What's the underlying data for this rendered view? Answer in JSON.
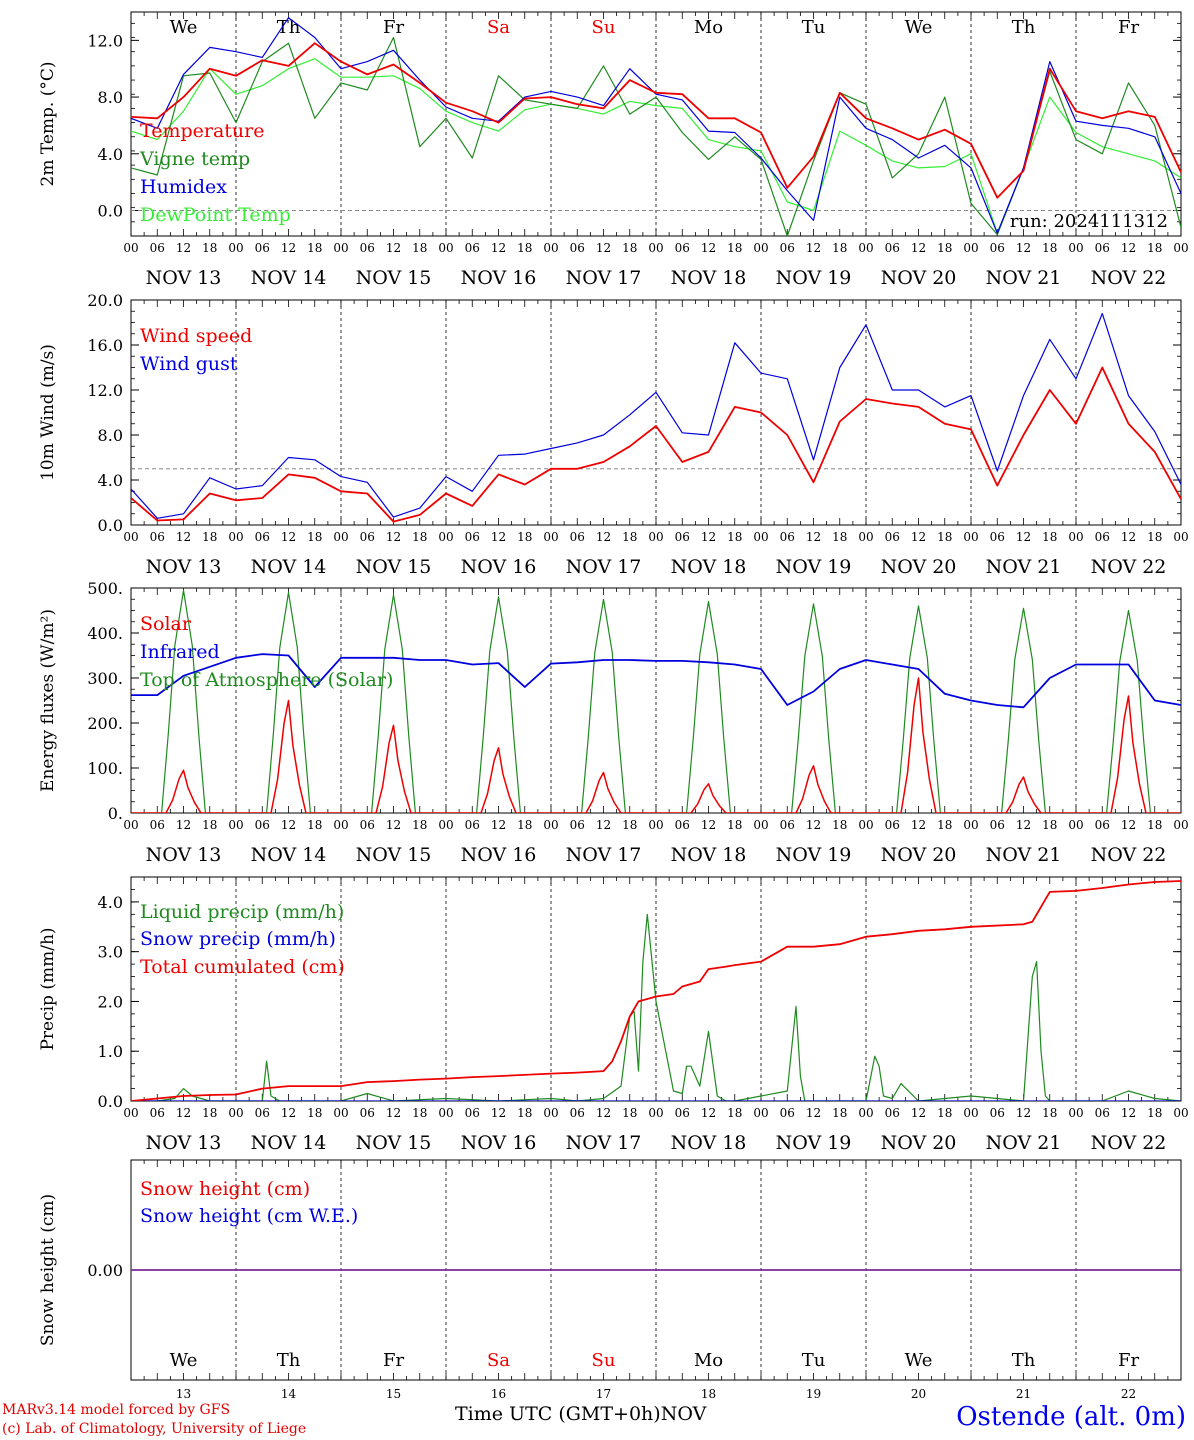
{
  "footer": {
    "credit_line1": "MARv3.14 model forced by GFS",
    "credit_line2": "(c) Lab. of Climatology, University of Liege",
    "x_axis_label": "Time UTC (GMT+0h)",
    "x_axis_month": "NOV",
    "station": "Ostende (alt. 0m)"
  },
  "colors": {
    "red": "#ee0000",
    "green": "#1f8a1f",
    "blue": "#0000dd",
    "lightgreen": "#33ee33",
    "purple": "#7a2a9a",
    "weekend": "#ee0000"
  },
  "days": {
    "weekday_labels": [
      "We",
      "Th",
      "Fr",
      "Sa",
      "Su",
      "Mo",
      "Tu",
      "We",
      "Th",
      "Fr"
    ],
    "weekend_index": [
      3,
      4
    ],
    "date_labels": [
      "NOV 13",
      "NOV 14",
      "NOV 15",
      "NOV 16",
      "NOV 17",
      "NOV 18",
      "NOV 19",
      "NOV 20",
      "NOV 21",
      "NOV 22"
    ],
    "day_numbers": [
      "13",
      "14",
      "15",
      "16",
      "17",
      "18",
      "19",
      "20",
      "21",
      "22"
    ],
    "hour_ticks": [
      "00",
      "06",
      "12",
      "18"
    ],
    "hour_tick_end": "00"
  },
  "chart_data": [
    {
      "type": "line",
      "ylabel": "2m Temp. (°C)",
      "ylim": [
        -1.8,
        14.0
      ],
      "yticks": [
        "0.0",
        "4.0",
        "8.0",
        "12.0"
      ],
      "ytick_values": [
        0,
        4,
        8,
        12
      ],
      "run_label": "run: 2024111312",
      "ref_line": 0,
      "x_unit": "hours since 2024-11-13 00 UTC",
      "series": [
        {
          "name": "Temperature",
          "color": "red",
          "x": [
            0,
            6,
            12,
            18,
            24,
            30,
            36,
            42,
            48,
            54,
            60,
            66,
            72,
            78,
            84,
            90,
            96,
            102,
            108,
            114,
            120,
            126,
            132,
            138,
            144,
            150,
            156,
            162,
            168,
            174,
            180,
            186,
            192,
            198,
            204,
            210,
            216,
            222,
            228,
            234,
            240
          ],
          "values": [
            6.6,
            6.5,
            8.0,
            10.0,
            9.5,
            10.6,
            10.2,
            11.8,
            10.5,
            9.6,
            10.3,
            9.0,
            7.6,
            7.0,
            6.2,
            7.9,
            8.0,
            7.5,
            7.2,
            9.2,
            8.3,
            8.2,
            6.5,
            6.5,
            5.5,
            1.6,
            3.8,
            8.3,
            6.5,
            5.8,
            5.0,
            5.7,
            4.7,
            0.9,
            2.8,
            10.0,
            7.0,
            6.5,
            7.0,
            6.6,
            2.7
          ]
        },
        {
          "name": "Vigne temp",
          "color": "green",
          "x": [
            0,
            6,
            12,
            18,
            24,
            30,
            36,
            42,
            48,
            54,
            60,
            66,
            72,
            78,
            84,
            90,
            96,
            102,
            108,
            114,
            120,
            126,
            132,
            138,
            144,
            150,
            156,
            162,
            168,
            174,
            180,
            186,
            192,
            198,
            204,
            210,
            216,
            222,
            228,
            234,
            240
          ],
          "values": [
            3.0,
            2.5,
            9.5,
            9.7,
            6.2,
            10.5,
            11.8,
            6.5,
            9.0,
            8.5,
            12.2,
            4.5,
            6.5,
            3.7,
            9.5,
            7.8,
            7.5,
            7.2,
            10.2,
            6.8,
            8.0,
            5.5,
            3.6,
            5.2,
            3.6,
            -1.8,
            3.5,
            8.3,
            7.5,
            2.3,
            4.0,
            8.0,
            0.5,
            -1.7,
            3.0,
            9.8,
            5.0,
            4.0,
            9.0,
            6.0,
            -1.2
          ]
        },
        {
          "name": "Humidex",
          "color": "blue",
          "x": [
            0,
            6,
            12,
            18,
            24,
            30,
            36,
            42,
            48,
            54,
            60,
            66,
            72,
            78,
            84,
            90,
            96,
            102,
            108,
            114,
            120,
            126,
            132,
            138,
            144,
            150,
            156,
            162,
            168,
            174,
            180,
            186,
            192,
            198,
            204,
            210,
            216,
            222,
            228,
            234,
            240
          ],
          "values": [
            6.5,
            5.8,
            9.6,
            11.5,
            11.2,
            10.8,
            13.6,
            12.2,
            10.0,
            10.5,
            11.3,
            9.2,
            7.3,
            6.5,
            6.3,
            8.0,
            8.4,
            8.0,
            7.4,
            10.0,
            8.2,
            7.8,
            5.6,
            5.5,
            3.7,
            1.4,
            -0.7,
            8.0,
            5.8,
            5.0,
            3.7,
            4.6,
            3.0,
            -1.6,
            3.0,
            10.5,
            6.3,
            6.0,
            5.8,
            5.2,
            1.2
          ]
        },
        {
          "name": "DewPoint Temp",
          "color": "lightgreen",
          "x": [
            0,
            6,
            12,
            18,
            24,
            30,
            36,
            42,
            48,
            54,
            60,
            66,
            72,
            78,
            84,
            90,
            96,
            102,
            108,
            114,
            120,
            126,
            132,
            138,
            144,
            150,
            156,
            162,
            168,
            174,
            180,
            186,
            192,
            198,
            204,
            210,
            216,
            222,
            228,
            234,
            240
          ],
          "values": [
            5.6,
            5.0,
            7.0,
            10.0,
            8.2,
            8.8,
            10.0,
            10.7,
            9.4,
            9.4,
            9.5,
            8.6,
            7.0,
            6.2,
            5.6,
            7.1,
            7.5,
            7.2,
            6.8,
            7.7,
            7.4,
            7.2,
            5.0,
            4.5,
            4.2,
            0.6,
            0.0,
            5.6,
            4.6,
            3.5,
            3.0,
            3.1,
            4.0,
            -1.6,
            3.0,
            8.0,
            5.5,
            4.5,
            4.0,
            3.5,
            2.3
          ]
        }
      ]
    },
    {
      "type": "line",
      "ylabel": "10m Wind (m/s)",
      "ylim": [
        0,
        20.0
      ],
      "yticks": [
        "0.0",
        "4.0",
        "8.0",
        "12.0",
        "16.0",
        "20.0"
      ],
      "ytick_values": [
        0,
        4,
        8,
        12,
        16,
        20
      ],
      "ref_line": 5,
      "x_unit": "hours since 2024-11-13 00 UTC",
      "series": [
        {
          "name": "Wind speed",
          "color": "red",
          "x": [
            0,
            6,
            12,
            18,
            24,
            30,
            36,
            42,
            48,
            54,
            60,
            66,
            72,
            78,
            84,
            90,
            96,
            102,
            108,
            114,
            120,
            126,
            132,
            138,
            144,
            150,
            156,
            162,
            168,
            174,
            180,
            186,
            192,
            198,
            204,
            210,
            216,
            222,
            228,
            234,
            240
          ],
          "values": [
            2.4,
            0.4,
            0.5,
            2.8,
            2.2,
            2.4,
            4.5,
            4.2,
            3.0,
            2.8,
            0.3,
            0.9,
            2.8,
            1.7,
            4.5,
            3.6,
            5.0,
            5.0,
            5.6,
            7.0,
            8.8,
            5.6,
            6.5,
            10.5,
            10.0,
            8.0,
            3.8,
            9.2,
            11.2,
            10.8,
            10.5,
            9.0,
            8.5,
            3.5,
            8.0,
            12.0,
            9.0,
            14.0,
            9.0,
            6.5,
            2.3
          ]
        },
        {
          "name": "Wind gust",
          "color": "blue",
          "x": [
            0,
            6,
            12,
            18,
            24,
            30,
            36,
            42,
            48,
            54,
            60,
            66,
            72,
            78,
            84,
            90,
            96,
            102,
            108,
            114,
            120,
            126,
            132,
            138,
            144,
            150,
            156,
            162,
            168,
            174,
            180,
            186,
            192,
            198,
            204,
            210,
            216,
            222,
            228,
            234,
            240
          ],
          "values": [
            3.2,
            0.6,
            1.0,
            4.2,
            3.2,
            3.5,
            6.0,
            5.8,
            4.3,
            3.8,
            0.7,
            1.5,
            4.3,
            3.0,
            6.2,
            6.3,
            6.8,
            7.3,
            8.0,
            9.8,
            11.8,
            8.2,
            8.0,
            16.2,
            13.5,
            13.0,
            5.8,
            14.0,
            17.8,
            12.0,
            12.0,
            10.5,
            11.5,
            4.8,
            11.5,
            16.5,
            13.0,
            18.8,
            11.5,
            8.3,
            3.6
          ]
        }
      ]
    },
    {
      "type": "line",
      "ylabel": "Energy fluxes (W/m²)",
      "ylim": [
        0,
        500
      ],
      "yticks": [
        "0.",
        "100.",
        "200.",
        "300.",
        "400.",
        "500."
      ],
      "ytick_values": [
        0,
        100,
        200,
        300,
        400,
        500
      ],
      "x_unit": "hours since 2024-11-13 00 UTC",
      "daily_peaks": {
        "Solar": [
          95,
          250,
          195,
          145,
          90,
          65,
          105,
          300,
          80,
          260
        ],
        "Top of Atmosphere (Solar)": [
          495,
          490,
          485,
          480,
          475,
          470,
          465,
          460,
          455,
          450
        ]
      },
      "series": [
        {
          "name": "Solar",
          "color": "red"
        },
        {
          "name": "Infrared",
          "color": "blue",
          "x": [
            0,
            6,
            12,
            18,
            24,
            30,
            36,
            42,
            48,
            54,
            60,
            66,
            72,
            78,
            84,
            90,
            96,
            102,
            108,
            114,
            120,
            126,
            132,
            138,
            144,
            150,
            156,
            162,
            168,
            174,
            180,
            186,
            192,
            198,
            204,
            210,
            216,
            222,
            228,
            234,
            240
          ],
          "values": [
            262,
            262,
            305,
            325,
            345,
            353,
            350,
            280,
            345,
            345,
            345,
            340,
            340,
            330,
            333,
            280,
            332,
            335,
            340,
            340,
            338,
            338,
            335,
            330,
            320,
            240,
            270,
            320,
            340,
            330,
            320,
            265,
            250,
            240,
            235,
            300,
            330,
            330,
            330,
            250,
            240
          ]
        },
        {
          "name": "Top of Atmosphere (Solar)",
          "color": "green"
        }
      ]
    },
    {
      "type": "line",
      "ylabel": "Precip (mm/h)",
      "ylim": [
        0,
        4.5
      ],
      "yticks": [
        "0.0",
        "1.0",
        "2.0",
        "3.0",
        "4.0"
      ],
      "ytick_values": [
        0,
        1,
        2,
        3,
        4
      ],
      "x_unit": "hours since 2024-11-13 00 UTC",
      "series": [
        {
          "name": "Liquid precip (mm/h)",
          "color": "green",
          "x": [
            0,
            6,
            10,
            12,
            14,
            16,
            18,
            24,
            30,
            31,
            32,
            34,
            36,
            48,
            54,
            60,
            72,
            84,
            96,
            102,
            108,
            112,
            114,
            115,
            116,
            117,
            118,
            120,
            124,
            126,
            127,
            128,
            130,
            132,
            134,
            136,
            138,
            144,
            150,
            152,
            153,
            154,
            156,
            168,
            170,
            171,
            172,
            174,
            176,
            180,
            192,
            204,
            206,
            207,
            208,
            209,
            210,
            216,
            222,
            228,
            234,
            240
          ],
          "values": [
            0,
            0,
            0.05,
            0.25,
            0.1,
            0.05,
            0,
            0,
            0,
            0.8,
            0.1,
            0,
            0,
            0,
            0.15,
            0,
            0.05,
            0,
            0.05,
            0,
            0.05,
            0.3,
            1.7,
            1.8,
            0.6,
            2.8,
            3.75,
            2.0,
            0.2,
            0.15,
            0.7,
            0.7,
            0.3,
            1.4,
            0.1,
            0,
            0,
            0.1,
            0.2,
            1.9,
            0.5,
            0,
            0,
            0,
            0.9,
            0.7,
            0.1,
            0.05,
            0.35,
            0,
            0.1,
            0,
            2.5,
            2.8,
            1.0,
            0.1,
            0,
            0,
            0,
            0.2,
            0.05,
            0
          ]
        },
        {
          "name": "Snow precip (mm/h)",
          "color": "blue",
          "x": [
            0,
            240
          ],
          "values": [
            0,
            0
          ]
        },
        {
          "name": "Total cumulated (cm)",
          "color": "red",
          "x": [
            0,
            12,
            18,
            24,
            30,
            36,
            48,
            54,
            60,
            66,
            72,
            78,
            84,
            96,
            102,
            108,
            110,
            112,
            114,
            116,
            118,
            120,
            124,
            126,
            130,
            132,
            136,
            138,
            144,
            150,
            152,
            156,
            162,
            168,
            174,
            180,
            186,
            192,
            204,
            206,
            208,
            210,
            216,
            222,
            228,
            234,
            240
          ],
          "values": [
            0,
            0.1,
            0.12,
            0.13,
            0.25,
            0.3,
            0.3,
            0.38,
            0.4,
            0.43,
            0.45,
            0.48,
            0.5,
            0.55,
            0.57,
            0.6,
            0.8,
            1.2,
            1.7,
            2.0,
            2.05,
            2.1,
            2.15,
            2.3,
            2.4,
            2.65,
            2.7,
            2.73,
            2.8,
            3.1,
            3.1,
            3.1,
            3.15,
            3.3,
            3.35,
            3.42,
            3.45,
            3.5,
            3.55,
            3.6,
            3.9,
            4.2,
            4.22,
            4.28,
            4.35,
            4.4,
            4.42
          ]
        }
      ]
    },
    {
      "type": "line",
      "ylabel": "Snow height (cm)",
      "ylim": [
        -1,
        1
      ],
      "yticks": [
        "0.00"
      ],
      "ytick_values": [
        0
      ],
      "x_unit": "hours since 2024-11-13 00 UTC",
      "series": [
        {
          "name": "Snow height (cm)",
          "color": "red",
          "x": [
            0,
            240
          ],
          "values": [
            0,
            0
          ]
        },
        {
          "name": "Snow height (cm W.E.)",
          "color": "blue",
          "x": [
            0,
            240
          ],
          "values": [
            0,
            0
          ]
        }
      ]
    }
  ]
}
